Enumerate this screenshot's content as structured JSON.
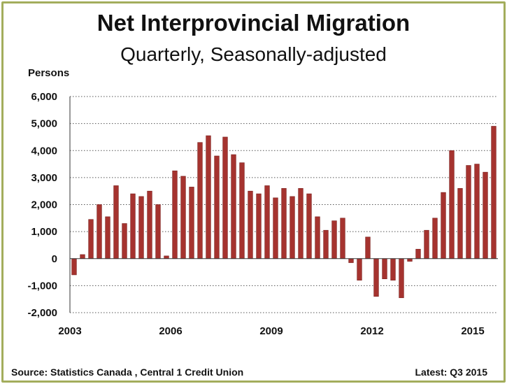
{
  "chart_data": {
    "type": "bar",
    "title": "Net Interprovincial Migration",
    "subtitle": "Quarterly, Seasonally-adjusted",
    "ylabel": "Persons",
    "ylim": [
      -2000,
      6000
    ],
    "yticks": [
      -2000,
      -1000,
      0,
      1000,
      2000,
      3000,
      4000,
      5000,
      6000
    ],
    "ytick_labels": [
      "-2,000",
      "-1,000",
      "0",
      "1,000",
      "2,000",
      "3,000",
      "4,000",
      "5,000",
      "6,000"
    ],
    "xtick_labels": [
      "2003",
      "2006",
      "2009",
      "2012",
      "2015"
    ],
    "grid": "horizontal dotted",
    "bar_color": "#a5332f",
    "categories": [
      "2003 Q1",
      "2003 Q2",
      "2003 Q3",
      "2003 Q4",
      "2004 Q1",
      "2004 Q2",
      "2004 Q3",
      "2004 Q4",
      "2005 Q1",
      "2005 Q2",
      "2005 Q3",
      "2005 Q4",
      "2006 Q1",
      "2006 Q2",
      "2006 Q3",
      "2006 Q4",
      "2007 Q1",
      "2007 Q2",
      "2007 Q3",
      "2007 Q4",
      "2008 Q1",
      "2008 Q2",
      "2008 Q3",
      "2008 Q4",
      "2009 Q1",
      "2009 Q2",
      "2009 Q3",
      "2009 Q4",
      "2010 Q1",
      "2010 Q2",
      "2010 Q3",
      "2010 Q4",
      "2011 Q1",
      "2011 Q2",
      "2011 Q3",
      "2011 Q4",
      "2012 Q1",
      "2012 Q2",
      "2012 Q3",
      "2012 Q4",
      "2013 Q1",
      "2013 Q2",
      "2013 Q3",
      "2013 Q4",
      "2014 Q1",
      "2014 Q2",
      "2014 Q3",
      "2014 Q4",
      "2015 Q1",
      "2015 Q2",
      "2015 Q3"
    ],
    "values": [
      -600,
      150,
      1450,
      2000,
      1550,
      2700,
      1300,
      2400,
      2300,
      2500,
      2000,
      100,
      3250,
      3050,
      2650,
      4300,
      4550,
      3800,
      4500,
      3850,
      3550,
      2500,
      2400,
      2700,
      2250,
      2600,
      2300,
      2600,
      2400,
      1550,
      1050,
      1400,
      1500,
      -150,
      -800,
      800,
      -1400,
      -750,
      -800,
      -1450,
      -100,
      350,
      1050,
      1500,
      2450,
      4000,
      2600,
      3450,
      3500,
      3200,
      4900
    ]
  },
  "footer": {
    "source": "Source:  Statistics Canada , Central 1 Credit Union",
    "latest": "Latest: Q3 2015"
  }
}
